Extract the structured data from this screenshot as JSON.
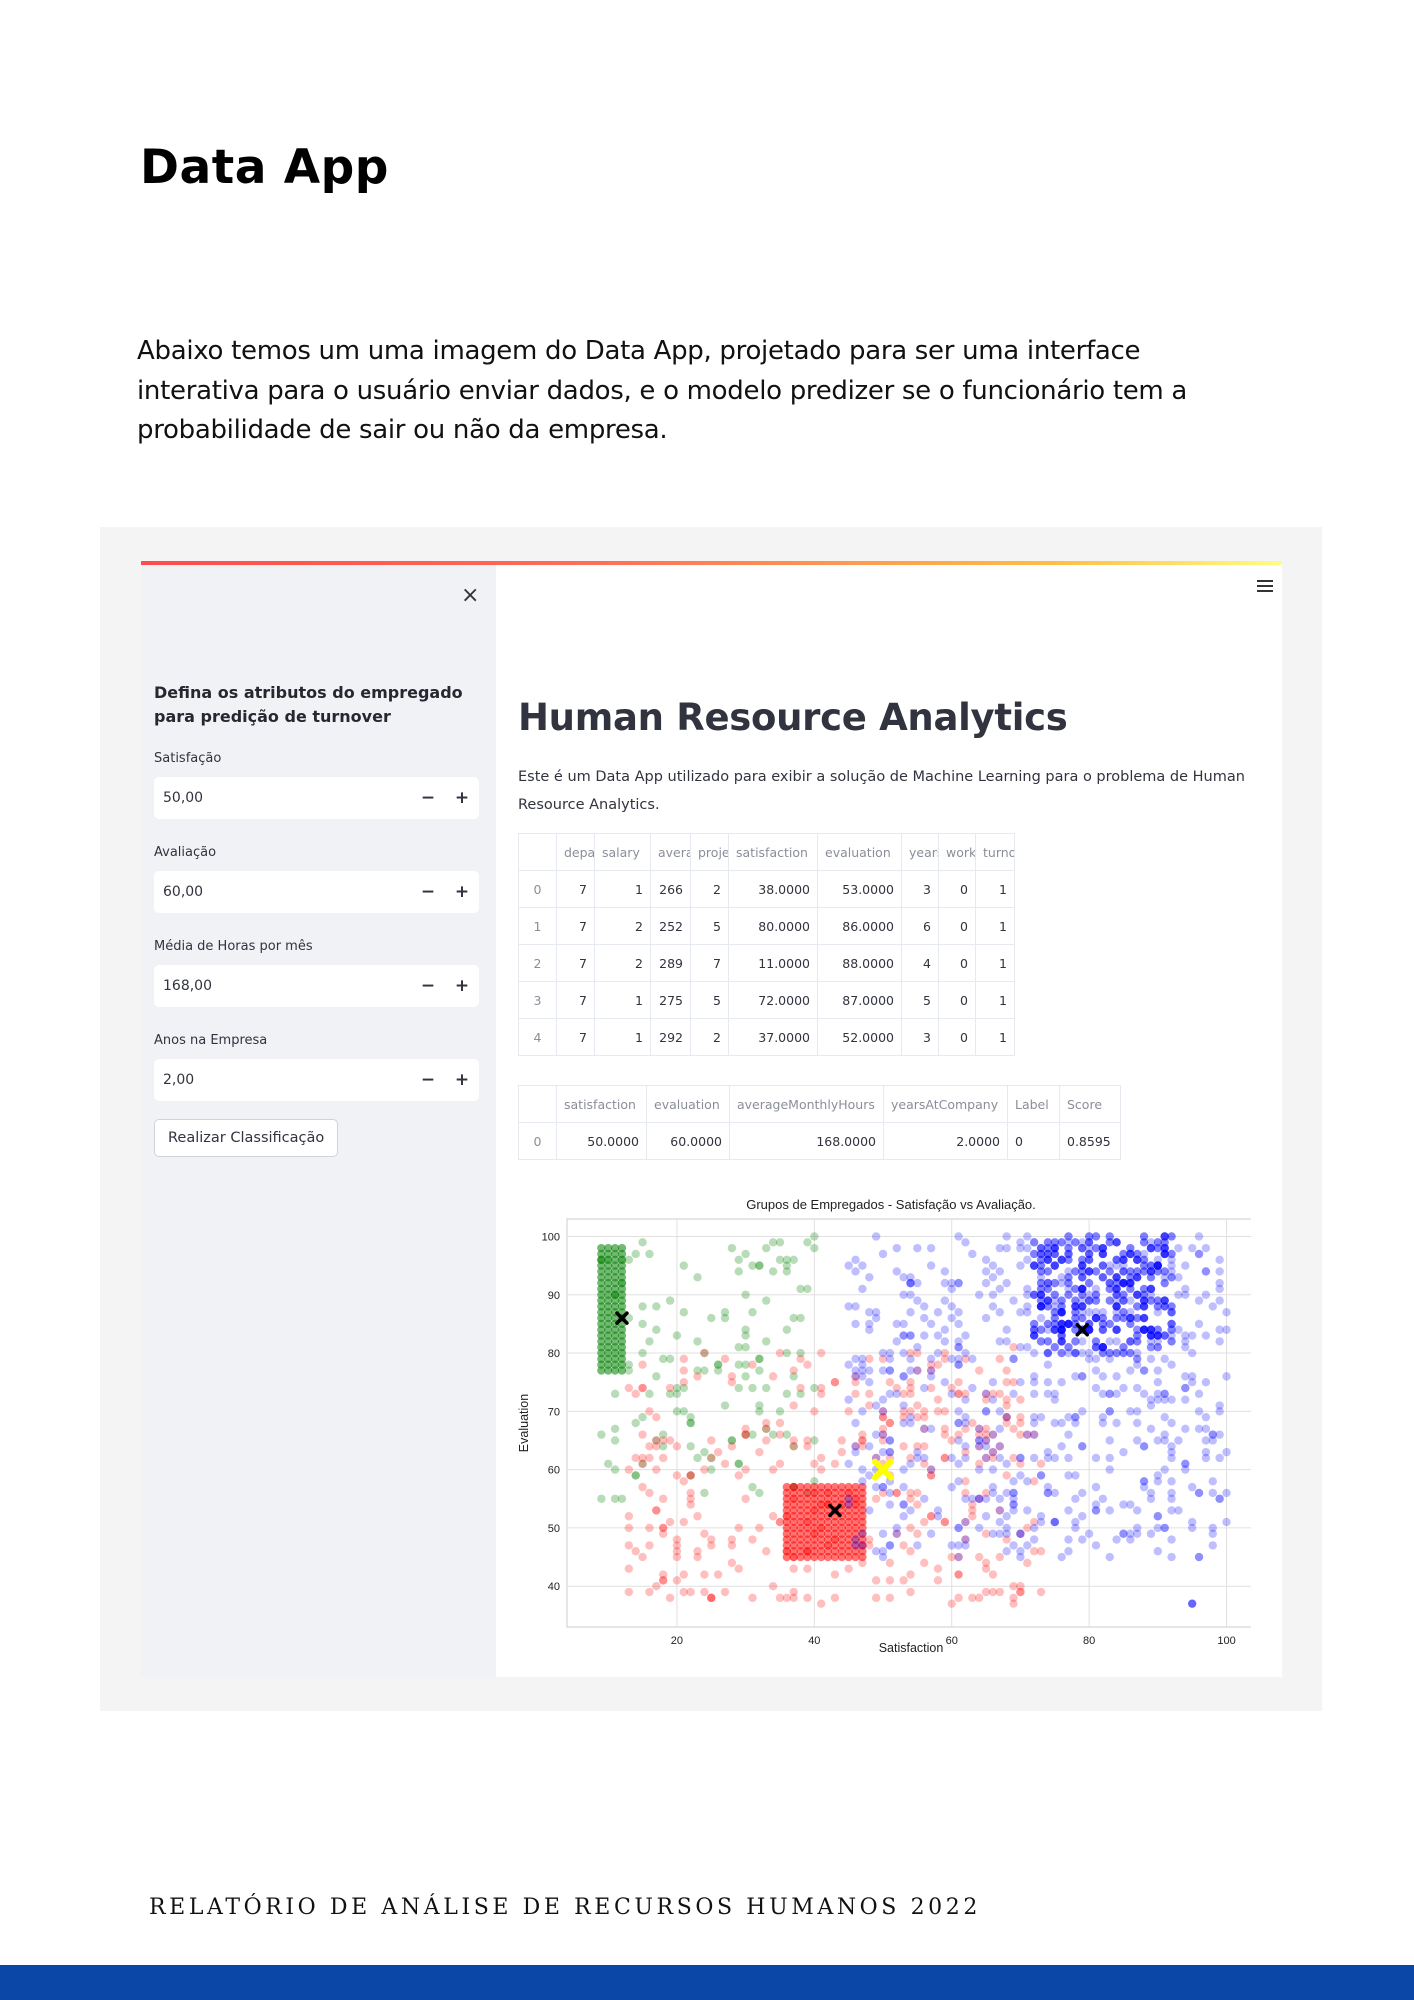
{
  "page": {
    "title": "Data App",
    "intro": "Abaixo temos um uma imagem do Data App, projetado para ser uma interface interativa para o usuário enviar dados, e o modelo predizer se o funcionário tem a probabilidade de sair ou não da empresa.",
    "footer": "RELATÓRIO DE ANÁLISE DE RECURSOS HUMANOS 2022"
  },
  "colors": {
    "footer_bar": "#0a47a6",
    "sidebar_bg": "#f0f2f6",
    "accent": "#ff4b4b"
  },
  "sidebar": {
    "close_icon": "×",
    "heading": "Defina os atributos do empregado para predição de turnover",
    "fields": [
      {
        "label": "Satisfação",
        "value": "50,00"
      },
      {
        "label": "Avaliação",
        "value": "60,00"
      },
      {
        "label": "Média de Horas por mês",
        "value": "168,00"
      },
      {
        "label": "Anos na Empresa",
        "value": "2,00"
      }
    ],
    "minus": "−",
    "plus": "+",
    "button": "Realizar Classificação"
  },
  "main": {
    "title": "Human Resource Analytics",
    "description": "Este é um Data App utilizado para exibir a solução de Machine Learning para o problema de Human Resource Analytics.",
    "table1": {
      "headers": [
        "",
        "depa",
        "salary",
        "avera",
        "proje",
        "satisfaction",
        "evaluation",
        "years",
        "work",
        "turno"
      ],
      "rows": [
        [
          "0",
          "7",
          "1",
          "266",
          "2",
          "38.0000",
          "53.0000",
          "3",
          "0",
          "1"
        ],
        [
          "1",
          "7",
          "2",
          "252",
          "5",
          "80.0000",
          "86.0000",
          "6",
          "0",
          "1"
        ],
        [
          "2",
          "7",
          "2",
          "289",
          "7",
          "11.0000",
          "88.0000",
          "4",
          "0",
          "1"
        ],
        [
          "3",
          "7",
          "1",
          "275",
          "5",
          "72.0000",
          "87.0000",
          "5",
          "0",
          "1"
        ],
        [
          "4",
          "7",
          "1",
          "292",
          "2",
          "37.0000",
          "52.0000",
          "3",
          "0",
          "1"
        ]
      ]
    },
    "table2": {
      "headers": [
        "",
        "satisfaction",
        "evaluation",
        "averageMonthlyHours",
        "yearsAtCompany",
        "Label",
        "Score"
      ],
      "rows": [
        [
          "0",
          "50.0000",
          "60.0000",
          "168.0000",
          "2.0000",
          "0",
          "0.8595"
        ]
      ]
    }
  },
  "chart_data": {
    "type": "scatter",
    "title": "Grupos de Empregados - Satisfação vs Avaliação.",
    "xlabel": "Satisfaction",
    "ylabel": "Evaluation",
    "xlim": [
      4,
      104
    ],
    "ylim": [
      33,
      103
    ],
    "xticks": [
      20,
      40,
      60,
      80,
      100
    ],
    "yticks": [
      40,
      50,
      60,
      70,
      80,
      90,
      100
    ],
    "grid": true,
    "clusters": [
      {
        "color": "#008000",
        "center": [
          12,
          86
        ],
        "x_range": [
          9,
          40
        ],
        "y_range": [
          55,
          100
        ]
      },
      {
        "color": "#ff0000",
        "center": [
          43,
          53
        ],
        "x_range": [
          12,
          75
        ],
        "y_range": [
          36,
          82
        ]
      },
      {
        "color": "#0000ff",
        "center": [
          79,
          84
        ],
        "x_range": [
          42,
          100
        ],
        "y_range": [
          37,
          100
        ]
      }
    ],
    "new_point": {
      "x": 50,
      "y": 60,
      "color": "#ffff00"
    }
  }
}
